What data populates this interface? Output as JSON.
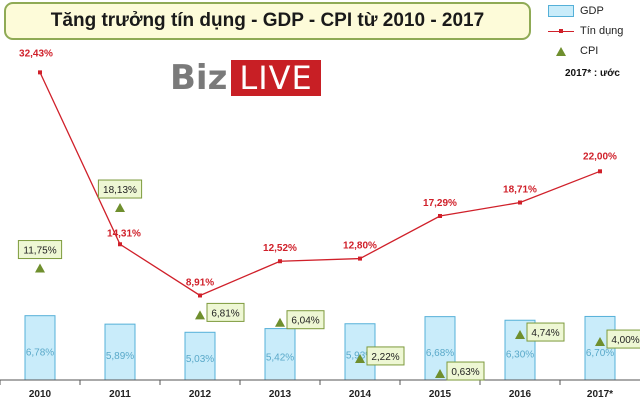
{
  "chart_data": {
    "type": "bar+line+scatter",
    "title": "Tăng trưởng tín dụng - GDP - CPI từ 2010 - 2017",
    "categories": [
      "2010",
      "2011",
      "2012",
      "2013",
      "2014",
      "2015",
      "2016",
      "2017*"
    ],
    "series": [
      {
        "name": "GDP",
        "type": "bar",
        "values": [
          6.78,
          5.89,
          5.03,
          5.42,
          5.93,
          6.68,
          6.3,
          6.7
        ],
        "labels": [
          "6,78%",
          "5,89%",
          "5,03%",
          "5,42%",
          "5,93%",
          "6,68%",
          "6,30%",
          "6,70%"
        ]
      },
      {
        "name": "Tín dụng",
        "type": "line",
        "values": [
          32.43,
          14.31,
          8.91,
          12.52,
          12.8,
          17.29,
          18.71,
          22.0
        ],
        "labels": [
          "32,43%",
          "14,31%",
          "8,91%",
          "12,52%",
          "12,80%",
          "17,29%",
          "18,71%",
          "22,00%"
        ]
      },
      {
        "name": "CPI",
        "type": "scatter",
        "values": [
          11.75,
          18.13,
          6.81,
          6.04,
          2.22,
          0.63,
          4.74,
          4.0
        ],
        "labels": [
          "11,75%",
          "18,13%",
          "6,81%",
          "6,04%",
          "2,22%",
          "0,63%",
          "4,74%",
          "4,00%"
        ]
      }
    ],
    "ylim": [
      0,
      35
    ],
    "grid": false,
    "legend_position": "top-right",
    "note": "2017* : ước",
    "colors": {
      "bar_fill": "#c9ecfa",
      "bar_stroke": "#55b0d8",
      "line": "#d0202a",
      "marker": "#6f8f2e",
      "cpi_label_bg": "#eef7d4",
      "cpi_label_border": "#7d9a3c",
      "axis": "#555555"
    }
  },
  "logo": {
    "part1": "Biz",
    "part2": "LIVE"
  }
}
